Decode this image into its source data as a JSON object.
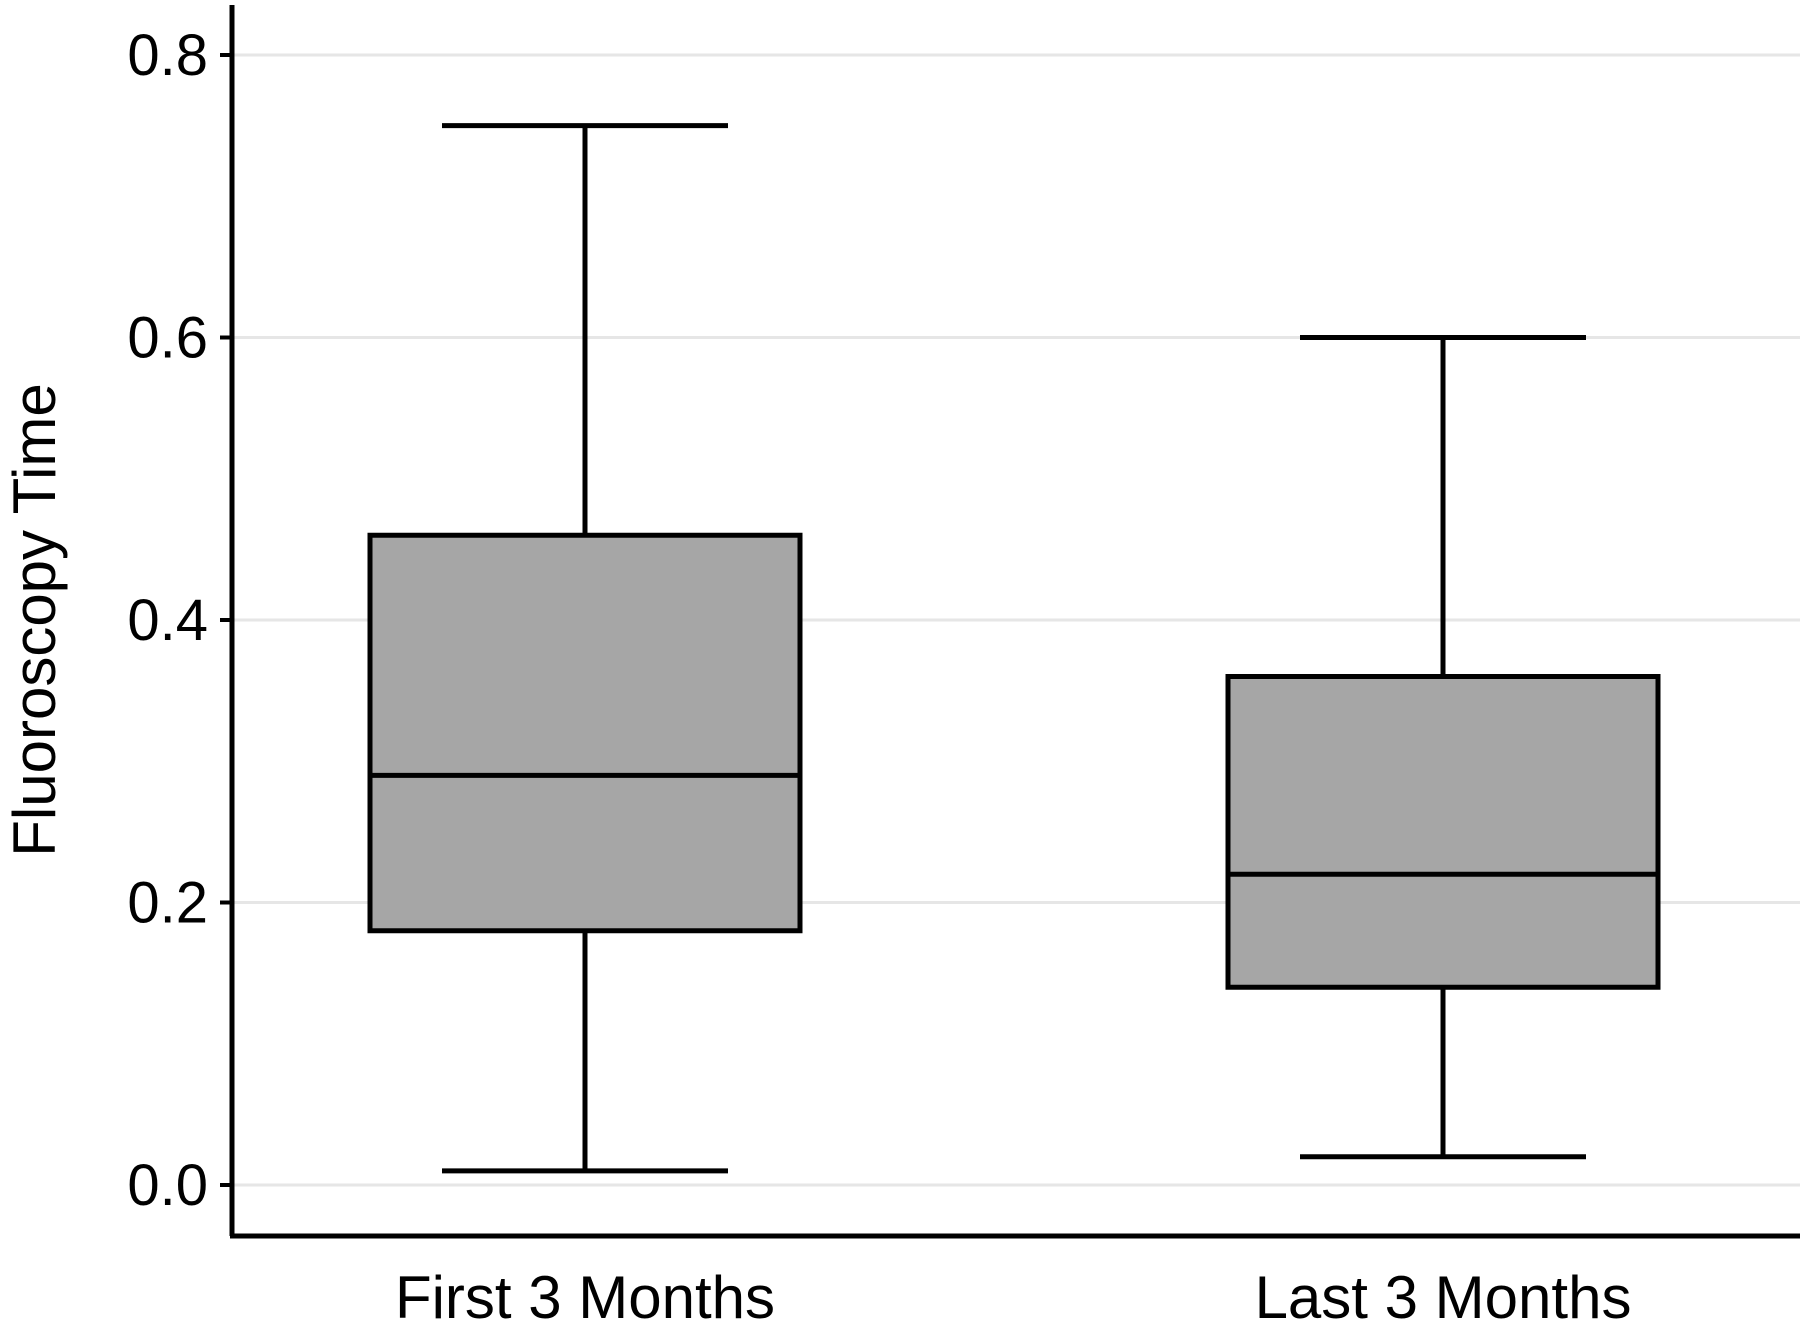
{
  "chart_data": {
    "type": "box",
    "title": "",
    "xlabel": "",
    "ylabel": "Fluoroscopy Time",
    "ylim": [
      -0.07,
      0.84
    ],
    "yticks": [
      0.0,
      0.2,
      0.4,
      0.6,
      0.8
    ],
    "ytick_labels": [
      "0.0",
      "0.2",
      "0.4",
      "0.6",
      "0.8"
    ],
    "grid": "horizontal",
    "categories": [
      "First 3 Months",
      "Last 3 Months"
    ],
    "boxes": [
      {
        "category": "First 3 Months",
        "whisker_low": 0.01,
        "q1": 0.18,
        "median": 0.29,
        "q3": 0.46,
        "whisker_high": 0.75
      },
      {
        "category": "Last 3 Months",
        "whisker_low": 0.02,
        "q1": 0.14,
        "median": 0.22,
        "q3": 0.36,
        "whisker_high": 0.6
      }
    ],
    "colors": {
      "box_fill": "#a6a6a6",
      "stroke": "#000000",
      "grid": "#e6e6e6",
      "background": "#ffffff"
    }
  }
}
